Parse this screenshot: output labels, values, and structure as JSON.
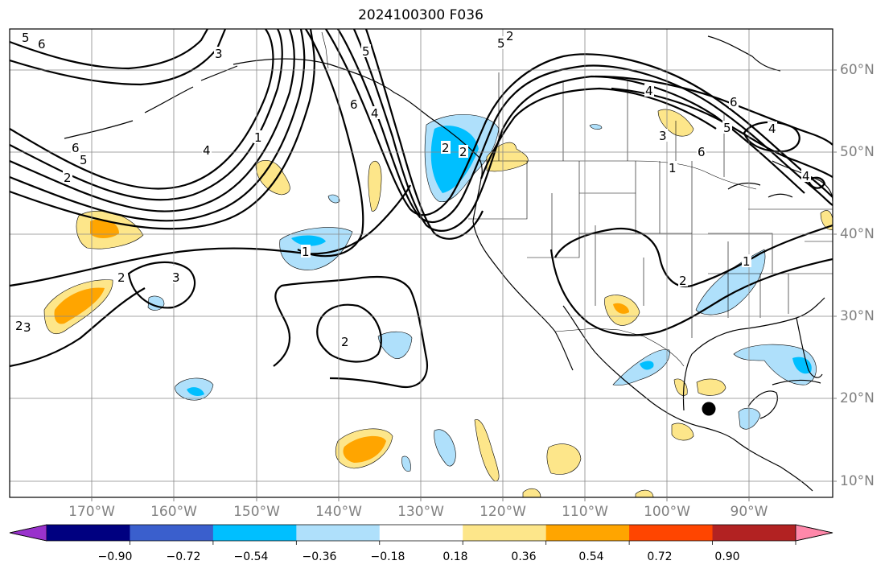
{
  "title": "2024100300 F036",
  "lat_labels": [
    "60°N",
    "50°N",
    "40°N",
    "30°N",
    "20°N",
    "10°N"
  ],
  "lon_labels": [
    "170°W",
    "160°W",
    "150°W",
    "140°W",
    "130°W",
    "120°W",
    "110°W",
    "100°W",
    "90°W"
  ],
  "colorbar": {
    "colors": [
      "#9932cc",
      "#000080",
      "#3a5fcd",
      "#00bfff",
      "#afe0fb",
      "#ffffff",
      "#fde68a",
      "#ffa500",
      "#ff4500",
      "#b22222",
      "#ff88aa"
    ],
    "labels": [
      "−0.90",
      "−0.72",
      "−0.54",
      "−0.36",
      "−0.18",
      "0.18",
      "0.36",
      "0.54",
      "0.72",
      "0.90"
    ]
  },
  "contour_labels": [
    "5",
    "6",
    "3",
    "6",
    "5",
    "4",
    "1",
    "2",
    "3",
    "2",
    "1",
    "2",
    "3",
    "2",
    "2",
    "5",
    "4",
    "6",
    "5",
    "4",
    "3",
    "1",
    "2",
    "1",
    "2",
    "2",
    "2",
    "6",
    "5",
    "4",
    "6",
    "4"
  ],
  "marker": "station-dot"
}
